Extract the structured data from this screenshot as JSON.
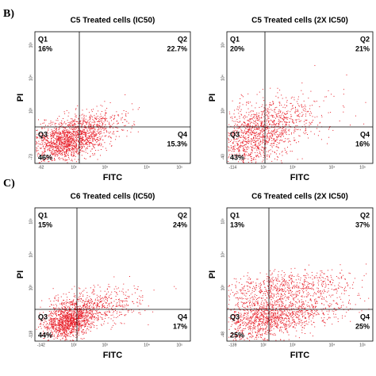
{
  "row_labels": [
    "B)",
    "C)"
  ],
  "panels": [
    {
      "title": "C5 Treated cells (IC50)",
      "x_label": "FITC",
      "y_label": "PI",
      "quadrants": [
        {
          "name": "Q1",
          "value": "16%"
        },
        {
          "name": "Q2",
          "value": "22.7%"
        },
        {
          "name": "Q3",
          "value": "46%"
        },
        {
          "name": "Q4",
          "value": "15.3%"
        }
      ],
      "x_ticks": [
        "-62",
        "10²",
        "10³",
        "10⁴",
        "10⁵"
      ],
      "y_ticks": [
        "-73",
        "10³",
        "10⁴",
        "10⁵"
      ]
    },
    {
      "title": "C5 Treated cells (2X IC50)",
      "x_label": "FITC",
      "y_label": "PI",
      "quadrants": [
        {
          "name": "Q1",
          "value": "20%"
        },
        {
          "name": "Q2",
          "value": "21%"
        },
        {
          "name": "Q3",
          "value": "43%"
        },
        {
          "name": "Q4",
          "value": "16%"
        }
      ],
      "x_ticks": [
        "-114",
        "10²",
        "10³",
        "10⁴",
        "10⁵"
      ],
      "y_ticks": [
        "-40",
        "10³",
        "10⁴",
        "10⁵"
      ]
    },
    {
      "title": "C6 Treated cells (IC50)",
      "x_label": "FITC",
      "y_label": "PI",
      "quadrants": [
        {
          "name": "Q1",
          "value": "15%"
        },
        {
          "name": "Q2",
          "value": "24%"
        },
        {
          "name": "Q3",
          "value": "44%"
        },
        {
          "name": "Q4",
          "value": "17%"
        }
      ],
      "x_ticks": [
        "-142",
        "10²",
        "10³",
        "10⁴",
        "10⁵"
      ],
      "y_ticks": [
        "-118",
        "10³",
        "10⁴",
        "10⁵"
      ]
    },
    {
      "title": "C6 Treated cells (2X IC50)",
      "x_label": "FITC",
      "y_label": "PI",
      "quadrants": [
        {
          "name": "Q1",
          "value": "13%"
        },
        {
          "name": "Q2",
          "value": "37%"
        },
        {
          "name": "Q3",
          "value": "25%"
        },
        {
          "name": "Q4",
          "value": "25%"
        }
      ],
      "x_ticks": [
        "-139",
        "10²",
        "10³",
        "10⁴",
        "10⁵"
      ],
      "y_ticks": [
        "-48",
        "10³",
        "10⁴",
        "10⁵"
      ]
    }
  ]
}
